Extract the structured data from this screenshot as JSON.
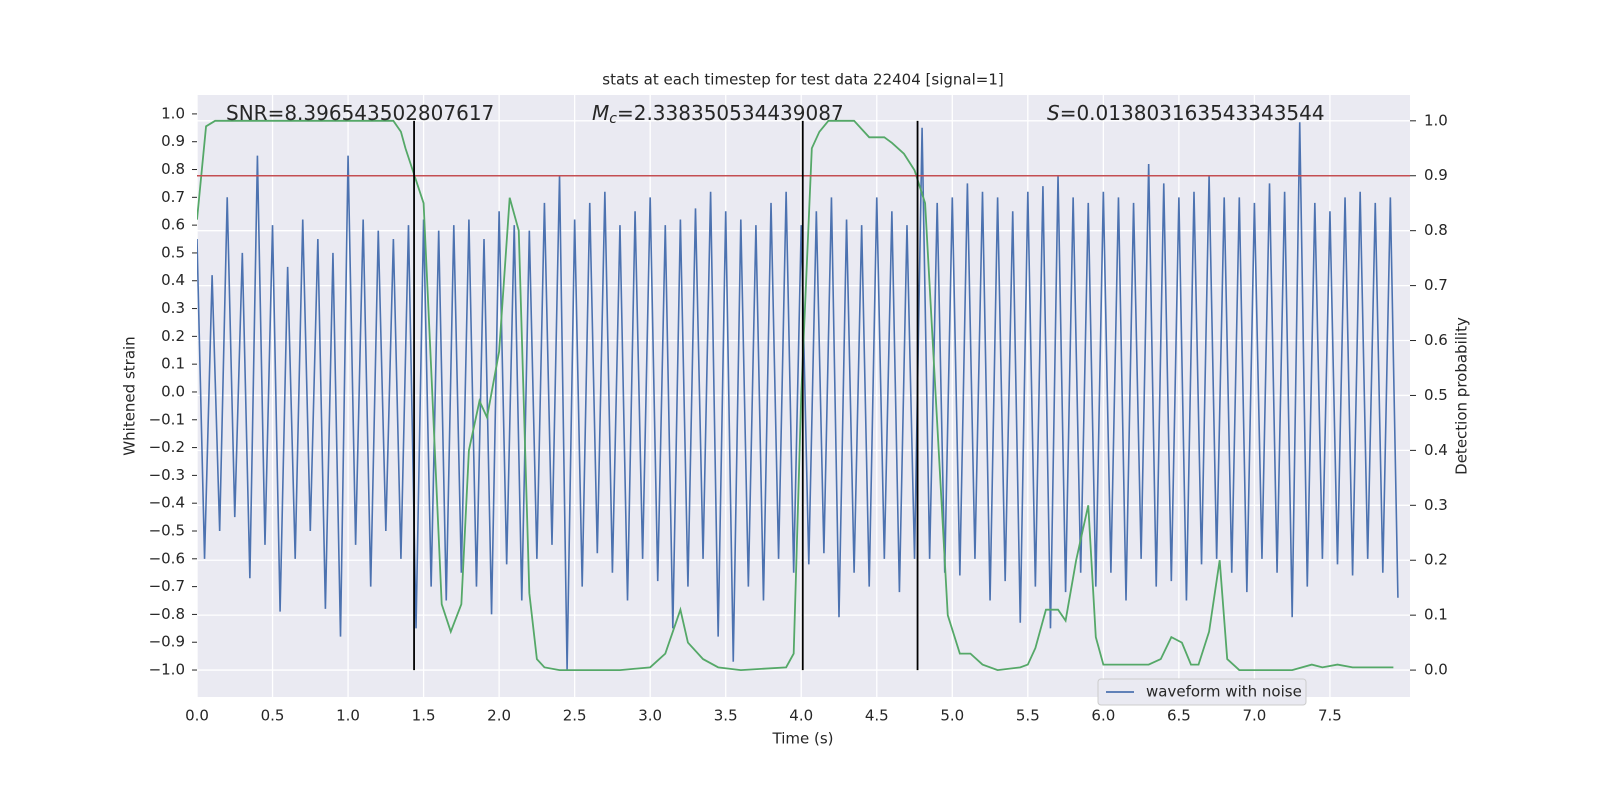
{
  "chart_data": {
    "type": "line",
    "title": "stats at each timestep for test data 22404 [signal=1]",
    "xlabel": "Time (s)",
    "ylabel": "Whitened strain",
    "y2label": "Detection probability",
    "xlim": [
      0,
      8.03
    ],
    "ylim": [
      -1.097,
      1.068
    ],
    "y2lim": [
      -0.049,
      1.047
    ],
    "xticks": [
      {
        "value": 0,
        "label": "0.0"
      },
      0.5,
      {
        "value": 1,
        "label": "1.0"
      },
      1.5,
      {
        "value": 2,
        "label": "2.0"
      },
      2.5,
      {
        "value": 3,
        "label": "3.0"
      },
      3.5,
      {
        "value": 4,
        "label": "4.0"
      },
      4.5,
      {
        "value": 5,
        "label": "5.0"
      },
      5.5,
      {
        "value": 6,
        "label": "6.0"
      },
      6.5,
      {
        "value": 7,
        "label": "7.0"
      },
      7.5
    ],
    "yticks": [
      {
        "value": -1,
        "label": "−1.0"
      },
      {
        "value": -0.9,
        "label": "−0.9"
      },
      {
        "value": -0.8,
        "label": "−0.8"
      },
      {
        "value": -0.7,
        "label": "−0.7"
      },
      {
        "value": -0.6,
        "label": "−0.6"
      },
      {
        "value": -0.5,
        "label": "−0.5"
      },
      {
        "value": -0.4,
        "label": "−0.4"
      },
      {
        "value": -0.3,
        "label": "−0.3"
      },
      {
        "value": -0.2,
        "label": "−0.2"
      },
      {
        "value": -0.1,
        "label": "−0.1"
      },
      {
        "value": 0,
        "label": "0.0"
      },
      0.1,
      0.2,
      0.3,
      0.4,
      0.5,
      0.6,
      0.7,
      0.8,
      0.9,
      {
        "value": 1,
        "label": "1.0"
      }
    ],
    "y2ticks": [
      {
        "value": 0,
        "label": "0.0"
      },
      0.1,
      0.2,
      0.3,
      0.4,
      0.5,
      0.6,
      0.7,
      0.8,
      0.9,
      {
        "value": 1,
        "label": "1.0"
      }
    ],
    "grid": true,
    "legend": "lower right",
    "annotations": [
      {
        "symbol": "SNR",
        "italic": false,
        "text": "=8.396543502807617"
      },
      {
        "symbol": "M",
        "subscript": "c",
        "italic": true,
        "text": "=2.338350534439087"
      },
      {
        "symbol": "S",
        "italic": true,
        "text": "=0.013803163543343544"
      }
    ],
    "series": [
      {
        "name": "waveform with noise",
        "color": "#4c72b0",
        "x": [
          0,
          0.05,
          0.1,
          0.15,
          0.2,
          0.25,
          0.3,
          0.35,
          0.4,
          0.45,
          0.5,
          0.55,
          0.6,
          0.65,
          0.7,
          0.75,
          0.8,
          0.85,
          0.9,
          0.95,
          1,
          1.05,
          1.1,
          1.15,
          1.2,
          1.25,
          1.3,
          1.35,
          1.4,
          1.45,
          1.5,
          1.55,
          1.6,
          1.65,
          1.7,
          1.75,
          1.8,
          1.85,
          1.9,
          1.95,
          2,
          2.05,
          2.1,
          2.15,
          2.2,
          2.25,
          2.3,
          2.35,
          2.4,
          2.45,
          2.5,
          2.55,
          2.6,
          2.65,
          2.7,
          2.75,
          2.8,
          2.85,
          2.9,
          2.95,
          3,
          3.05,
          3.1,
          3.15,
          3.2,
          3.25,
          3.3,
          3.35,
          3.4,
          3.45,
          3.5,
          3.55,
          3.6,
          3.65,
          3.7,
          3.75,
          3.8,
          3.85,
          3.9,
          3.95,
          4,
          4.05,
          4.1,
          4.15,
          4.2,
          4.25,
          4.3,
          4.35,
          4.4,
          4.45,
          4.5,
          4.55,
          4.6,
          4.65,
          4.7,
          4.75,
          4.8,
          4.85,
          4.9,
          4.95,
          5,
          5.05,
          5.1,
          5.15,
          5.2,
          5.25,
          5.3,
          5.35,
          5.4,
          5.45,
          5.5,
          5.55,
          5.6,
          5.65,
          5.7,
          5.75,
          5.8,
          5.85,
          5.9,
          5.95,
          6,
          6.05,
          6.1,
          6.15,
          6.2,
          6.25,
          6.3,
          6.35,
          6.4,
          6.45,
          6.5,
          6.55,
          6.6,
          6.65,
          6.7,
          6.75,
          6.8,
          6.85,
          6.9,
          6.95,
          7,
          7.05,
          7.1,
          7.15,
          7.2,
          7.25,
          7.3,
          7.35,
          7.4,
          7.45,
          7.5,
          7.55,
          7.6,
          7.65,
          7.7,
          7.75,
          7.8,
          7.85,
          7.9,
          7.95
        ],
        "values": [
          0.55,
          -0.6,
          0.42,
          -0.5,
          0.7,
          -0.45,
          0.5,
          -0.67,
          0.85,
          -0.55,
          0.6,
          -0.79,
          0.45,
          -0.6,
          0.62,
          -0.5,
          0.55,
          -0.78,
          0.5,
          -0.88,
          0.85,
          -0.55,
          0.62,
          -0.7,
          0.58,
          -0.5,
          0.55,
          -0.6,
          0.6,
          -0.85,
          0.62,
          -0.7,
          0.58,
          -0.75,
          0.6,
          -0.65,
          0.62,
          -0.7,
          0.55,
          -0.8,
          0.65,
          -0.62,
          0.6,
          -0.75,
          0.58,
          -0.6,
          0.68,
          -0.55,
          0.78,
          -1.0,
          0.62,
          -0.7,
          0.68,
          -0.58,
          0.72,
          -0.65,
          0.6,
          -0.75,
          0.65,
          -0.6,
          0.7,
          -0.68,
          0.6,
          -0.85,
          0.62,
          -0.7,
          0.66,
          -0.6,
          0.72,
          -0.88,
          0.65,
          -0.97,
          0.62,
          -0.7,
          0.6,
          -0.75,
          0.68,
          -0.6,
          0.72,
          -0.65,
          0.6,
          -0.62,
          0.65,
          -0.58,
          0.7,
          -0.81,
          0.62,
          -0.65,
          0.6,
          -0.7,
          0.7,
          -0.6,
          0.65,
          -0.72,
          0.6,
          -0.6,
          0.95,
          -0.6,
          0.68,
          -0.65,
          0.7,
          -0.66,
          0.75,
          -0.6,
          0.72,
          -0.75,
          0.7,
          -0.68,
          0.65,
          -0.83,
          0.72,
          -0.7,
          0.74,
          -0.85,
          0.78,
          -0.72,
          0.7,
          -0.65,
          0.68,
          -0.7,
          0.72,
          -0.65,
          0.7,
          -0.75,
          0.68,
          -0.6,
          0.82,
          -0.7,
          0.75,
          -0.68,
          0.7,
          -0.75,
          0.72,
          -0.62,
          0.78,
          -0.6,
          0.7,
          -0.65,
          0.7,
          -0.72,
          0.68,
          -0.6,
          0.75,
          -0.65,
          0.72,
          -0.81,
          0.97,
          -0.7,
          0.68,
          -0.6,
          0.65,
          -0.62,
          0.7,
          -0.66,
          0.72,
          -0.6,
          0.68,
          -0.65,
          0.7,
          -0.74
        ]
      },
      {
        "color": "#55a868",
        "axis": "y2",
        "x": [
          0,
          0.06,
          0.12,
          0.2,
          0.4,
          0.6,
          0.8,
          1.0,
          1.2,
          1.3,
          1.35,
          1.38,
          1.44,
          1.5,
          1.55,
          1.62,
          1.68,
          1.75,
          1.8,
          1.87,
          1.92,
          2.0,
          2.07,
          2.13,
          2.2,
          2.25,
          2.3,
          2.4,
          2.6,
          2.8,
          3.0,
          3.1,
          3.2,
          3.25,
          3.35,
          3.45,
          3.6,
          3.9,
          3.95,
          4.0,
          4.07,
          4.12,
          4.18,
          4.25,
          4.35,
          4.45,
          4.55,
          4.6,
          4.68,
          4.75,
          4.82,
          4.87,
          4.9,
          4.97,
          5.05,
          5.12,
          5.2,
          5.3,
          5.45,
          5.5,
          5.55,
          5.62,
          5.7,
          5.75,
          5.82,
          5.9,
          5.95,
          6.0,
          6.1,
          6.2,
          6.3,
          6.38,
          6.45,
          6.52,
          6.58,
          6.63,
          6.7,
          6.77,
          6.82,
          6.9,
          7.0,
          7.1,
          7.25,
          7.38,
          7.45,
          7.55,
          7.65,
          7.8,
          7.92
        ],
        "values": [
          0.82,
          0.99,
          1.0,
          1.0,
          1.0,
          1.0,
          1.0,
          1.0,
          1.0,
          1.0,
          0.98,
          0.95,
          0.9,
          0.85,
          0.55,
          0.12,
          0.07,
          0.12,
          0.4,
          0.49,
          0.46,
          0.58,
          0.86,
          0.8,
          0.14,
          0.02,
          0.005,
          0.0,
          0.0,
          0.0,
          0.005,
          0.03,
          0.11,
          0.05,
          0.02,
          0.005,
          0.0,
          0.005,
          0.03,
          0.5,
          0.95,
          0.98,
          1.0,
          1.0,
          1.0,
          0.97,
          0.97,
          0.96,
          0.94,
          0.91,
          0.85,
          0.6,
          0.45,
          0.1,
          0.03,
          0.03,
          0.01,
          0.0,
          0.005,
          0.01,
          0.04,
          0.11,
          0.11,
          0.09,
          0.2,
          0.3,
          0.06,
          0.01,
          0.01,
          0.01,
          0.01,
          0.02,
          0.06,
          0.05,
          0.01,
          0.01,
          0.07,
          0.2,
          0.02,
          0.0,
          0.0,
          0.0,
          0.0,
          0.01,
          0.005,
          0.01,
          0.005,
          0.005,
          0.005
        ]
      }
    ],
    "hlines": [
      {
        "value": 0.9,
        "axis": "y2",
        "color": "#c44e52"
      }
    ],
    "vlines": {
      "color": "#000000",
      "x": [
        1.437,
        4.01,
        4.77
      ],
      "y2range": [
        0,
        1
      ]
    }
  }
}
